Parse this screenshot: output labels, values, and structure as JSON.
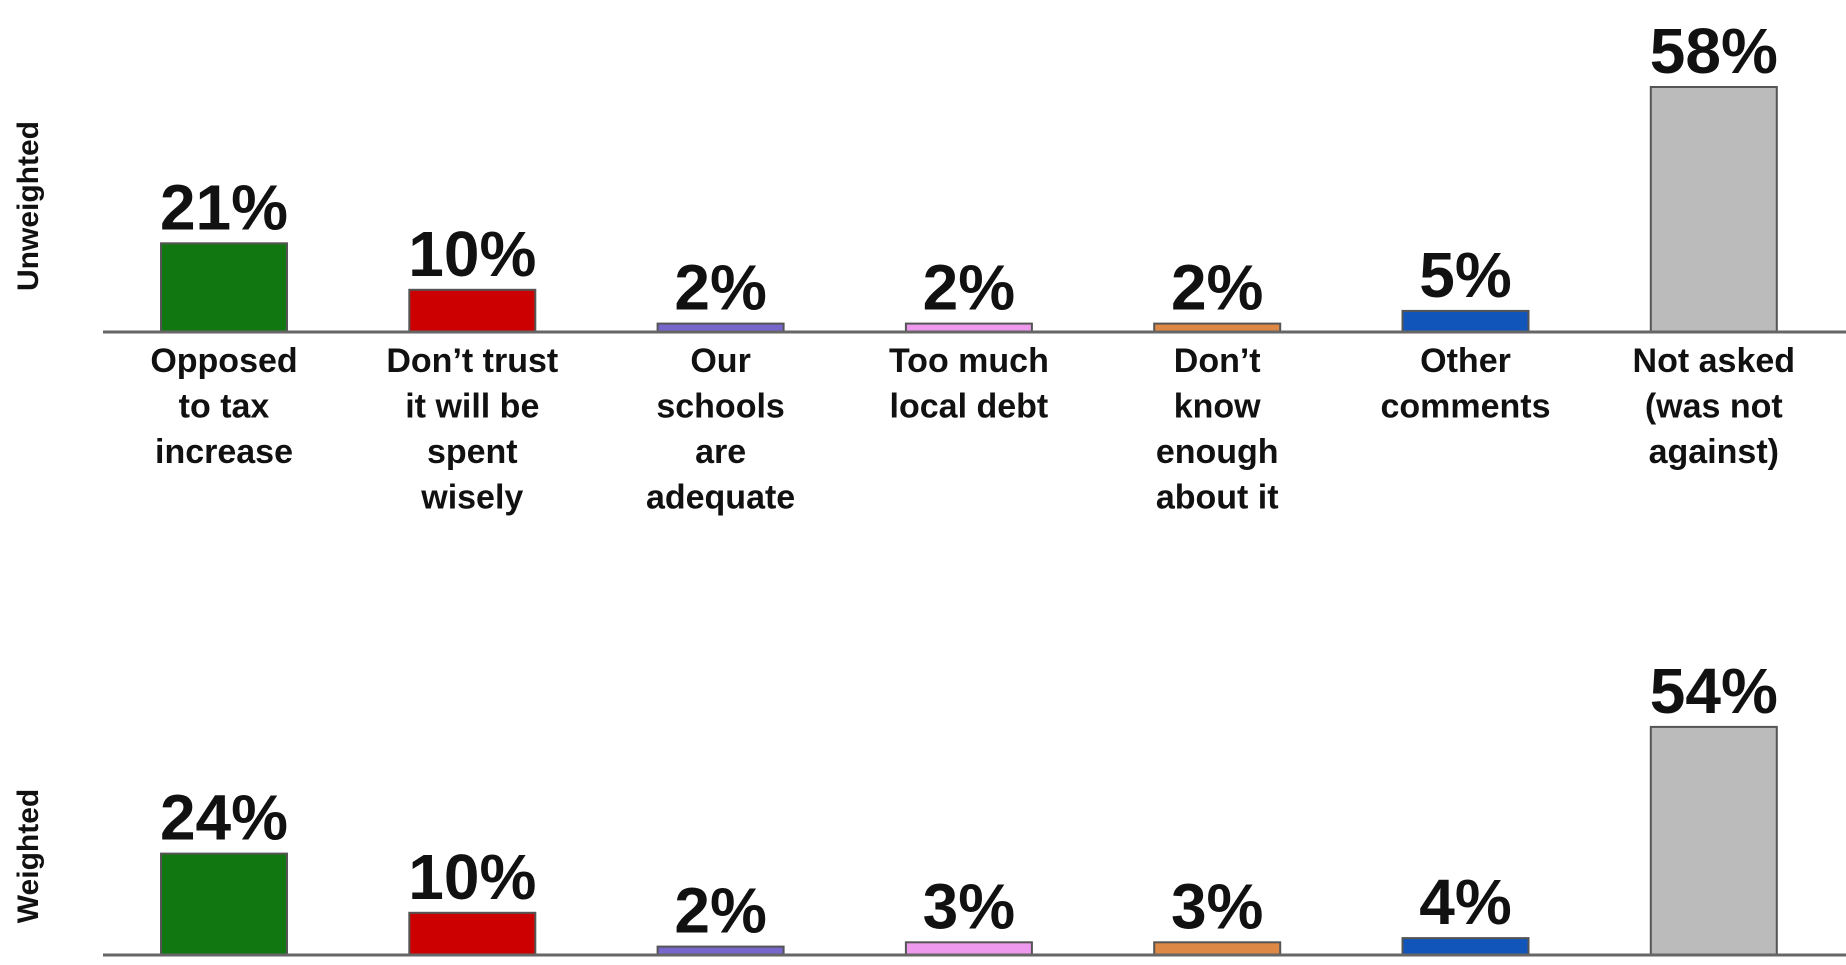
{
  "chart_data": [
    {
      "type": "bar",
      "panel_label": "Unweighted",
      "categories": [
        "Opposed to tax increase",
        "Don’t trust it will be spent wisely",
        "Our schools are adequate",
        "Too much local debt",
        "Don’t know enough about it",
        "Other comments",
        "Not asked (was not against)"
      ],
      "category_lines": [
        [
          "Opposed",
          "to tax",
          "increase"
        ],
        [
          "Don’t trust",
          "it will be",
          "spent",
          "wisely"
        ],
        [
          "Our",
          "schools",
          "are",
          "adequate"
        ],
        [
          "Too much",
          "local debt"
        ],
        [
          "Don’t",
          "know",
          "enough",
          "about it"
        ],
        [
          "Other",
          "comments"
        ],
        [
          "Not asked",
          "(was not",
          "against)"
        ]
      ],
      "values": [
        21,
        10,
        2,
        2,
        2,
        5,
        58
      ],
      "value_labels": [
        "21%",
        "10%",
        "2%",
        "2%",
        "2%",
        "5%",
        "58%"
      ],
      "colors": [
        "#117711",
        "#cc0000",
        "#7766cc",
        "#ee99ee",
        "#dd8844",
        "#1155bb",
        "#bbbbbb"
      ],
      "ylim": [
        0,
        58
      ],
      "grid": false
    },
    {
      "type": "bar",
      "panel_label": "Weighted",
      "categories": [
        "Opposed to tax increase",
        "Don’t trust it will be spent wisely",
        "Our schools are adequate",
        "Too much local debt",
        "Don’t know enough about it",
        "Other comments",
        "Not asked (was not against)"
      ],
      "values": [
        24,
        10,
        2,
        3,
        3,
        4,
        54
      ],
      "value_labels": [
        "24%",
        "10%",
        "2%",
        "3%",
        "3%",
        "4%",
        "54%"
      ],
      "colors": [
        "#117711",
        "#cc0000",
        "#7766cc",
        "#ee99ee",
        "#dd8844",
        "#1155bb",
        "#bbbbbb"
      ],
      "ylim": [
        0,
        58
      ],
      "grid": false
    }
  ]
}
